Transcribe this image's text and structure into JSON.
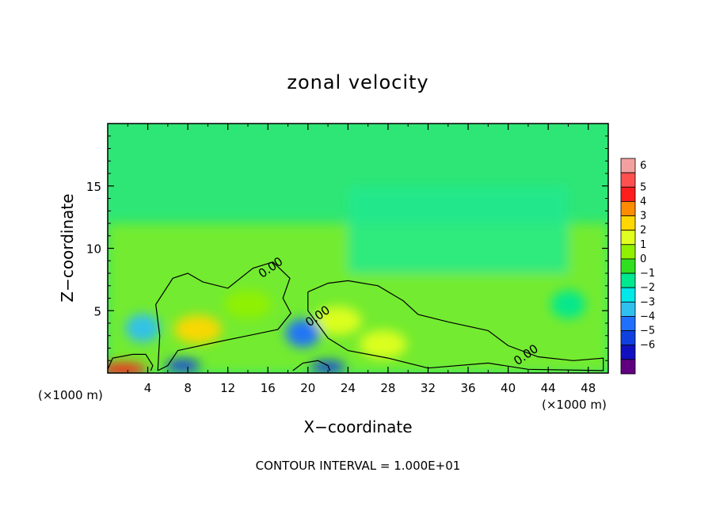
{
  "chart_data": {
    "type": "heatmap",
    "title": "zonal velocity",
    "xlabel": "X−coordinate",
    "ylabel": "Z−coordinate",
    "x_units_left": "(×1000 m)",
    "x_units_right": "(×1000 m)",
    "footer": "CONTOUR INTERVAL = 1.000E+01",
    "xlim": [
      0,
      50
    ],
    "ylim": [
      0,
      20
    ],
    "x_ticks": [
      "4",
      "8",
      "12",
      "16",
      "20",
      "24",
      "28",
      "32",
      "36",
      "40",
      "44",
      "48"
    ],
    "x_tick_values": [
      4,
      8,
      12,
      16,
      20,
      24,
      28,
      32,
      36,
      40,
      44,
      48
    ],
    "y_ticks": [
      "5",
      "10",
      "15"
    ],
    "y_tick_values": [
      5,
      10,
      15
    ],
    "colorbar": {
      "levels": [
        "6",
        "5",
        "4",
        "3",
        "2",
        "1",
        "0",
        "−1",
        "−2",
        "−3",
        "−4",
        "−5",
        "−6"
      ],
      "colors": [
        "#f4a0a0",
        "#ff5050",
        "#ff1e1e",
        "#ff8c00",
        "#ffd700",
        "#e0ff20",
        "#90f000",
        "#30e020",
        "#00e890",
        "#00e8e8",
        "#30c0f0",
        "#2070ff",
        "#1040e0",
        "#1010c0",
        "#600080"
      ]
    },
    "contour_labels": [
      "0.00",
      "0.00",
      "0.00"
    ],
    "contour_label_positions": [
      [
        16.5,
        8.2
      ],
      [
        21.2,
        4.3
      ],
      [
        42,
        1.2
      ]
    ],
    "field_features": [
      {
        "kind": "positive",
        "x": 9.0,
        "z": 3.5,
        "value": 2.2
      },
      {
        "kind": "positive",
        "x": 14.0,
        "z": 5.5,
        "value": 1.0
      },
      {
        "kind": "positive",
        "x": 23.0,
        "z": 4.2,
        "value": 1.4
      },
      {
        "kind": "positive",
        "x": 27.5,
        "z": 2.3,
        "value": 2.0
      },
      {
        "kind": "positive",
        "x": 1.5,
        "z": 0.3,
        "value": 4.0
      },
      {
        "kind": "negative",
        "x": 3.5,
        "z": 3.6,
        "value": -2.8
      },
      {
        "kind": "negative",
        "x": 19.5,
        "z": 3.2,
        "value": -3.0
      },
      {
        "kind": "negative",
        "x": 7.5,
        "z": 0.6,
        "value": -4.5
      },
      {
        "kind": "negative",
        "x": 22.0,
        "z": 0.5,
        "value": -4.0
      },
      {
        "kind": "negative",
        "x": 46.0,
        "z": 5.5,
        "value": -1.2
      }
    ]
  }
}
